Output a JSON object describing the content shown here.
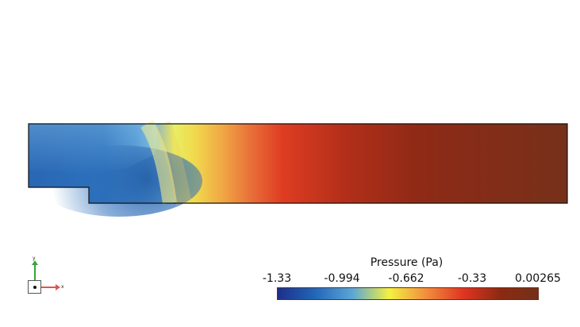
{
  "viewport": {
    "field_name": "Pressure (Pa)",
    "colormap": [
      "#1c2f8a",
      "#2266b8",
      "#5aa5d6",
      "#f3f142",
      "#f28d3d",
      "#df3421",
      "#8a2a12",
      "#74301a"
    ]
  },
  "axis_triad": {
    "y_label": "y",
    "x_label": "x",
    "y_color": "#3aa23a",
    "x_color": "#e0554c"
  },
  "legend": {
    "title": "Pressure (Pa)",
    "ticks": [
      "-1.33",
      "-0.994",
      "-0.662",
      "-0.33",
      "0.00265"
    ]
  }
}
